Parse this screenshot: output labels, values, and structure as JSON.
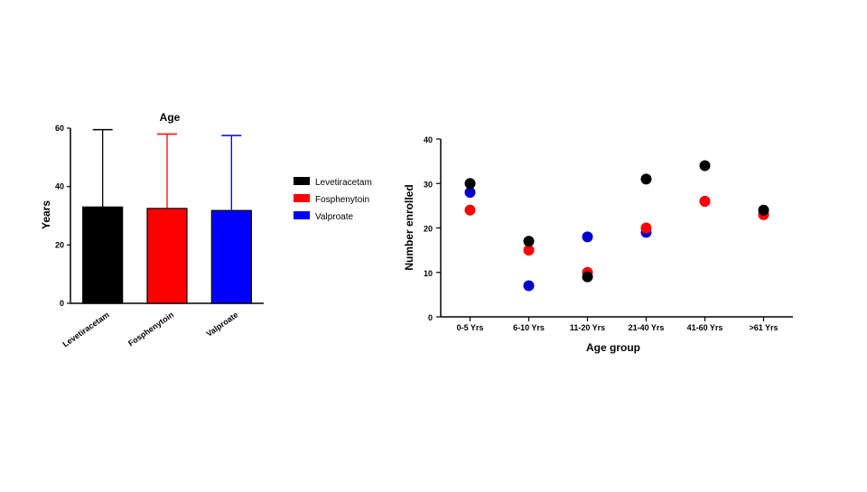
{
  "chart_data": [
    {
      "type": "bar",
      "title": "Age",
      "ylabel": "Years",
      "xlabel": "",
      "ylim": [
        0,
        60
      ],
      "yticks": [
        0,
        20,
        40,
        60
      ],
      "categories": [
        "Levetiracetam",
        "Fosphenytoin",
        "Valproate"
      ],
      "values": [
        33,
        32.5,
        31.8
      ],
      "error_upper": [
        59.5,
        58,
        57.5
      ],
      "colors": [
        "#000000",
        "#ff0000",
        "#0000ff"
      ],
      "legend": {
        "placement": "right",
        "entries": [
          {
            "label": "Levetiracetam",
            "color": "#000000"
          },
          {
            "label": "Fosphenytoin",
            "color": "#ff0000"
          },
          {
            "label": "Valproate",
            "color": "#0000ff"
          }
        ]
      },
      "grid": false
    },
    {
      "type": "scatter",
      "title": "",
      "xlabel": "Age group",
      "ylabel": "Number enrolled",
      "ylim": [
        0,
        40
      ],
      "yticks": [
        0,
        10,
        20,
        30,
        40
      ],
      "categories": [
        "0-5 Yrs",
        "6-10 Yrs",
        "11-20 Yrs",
        "21-40 Yrs",
        "41-60 Yrs",
        ">61 Yrs"
      ],
      "series": [
        {
          "color": "#0000cc",
          "values": [
            28,
            7,
            18,
            19,
            26,
            23
          ]
        },
        {
          "color": "#ff0000",
          "values": [
            24,
            15,
            10,
            20,
            26,
            23
          ]
        },
        {
          "color": "#000000",
          "values": [
            30,
            17,
            9,
            31,
            34,
            24
          ]
        }
      ],
      "grid": false
    }
  ]
}
